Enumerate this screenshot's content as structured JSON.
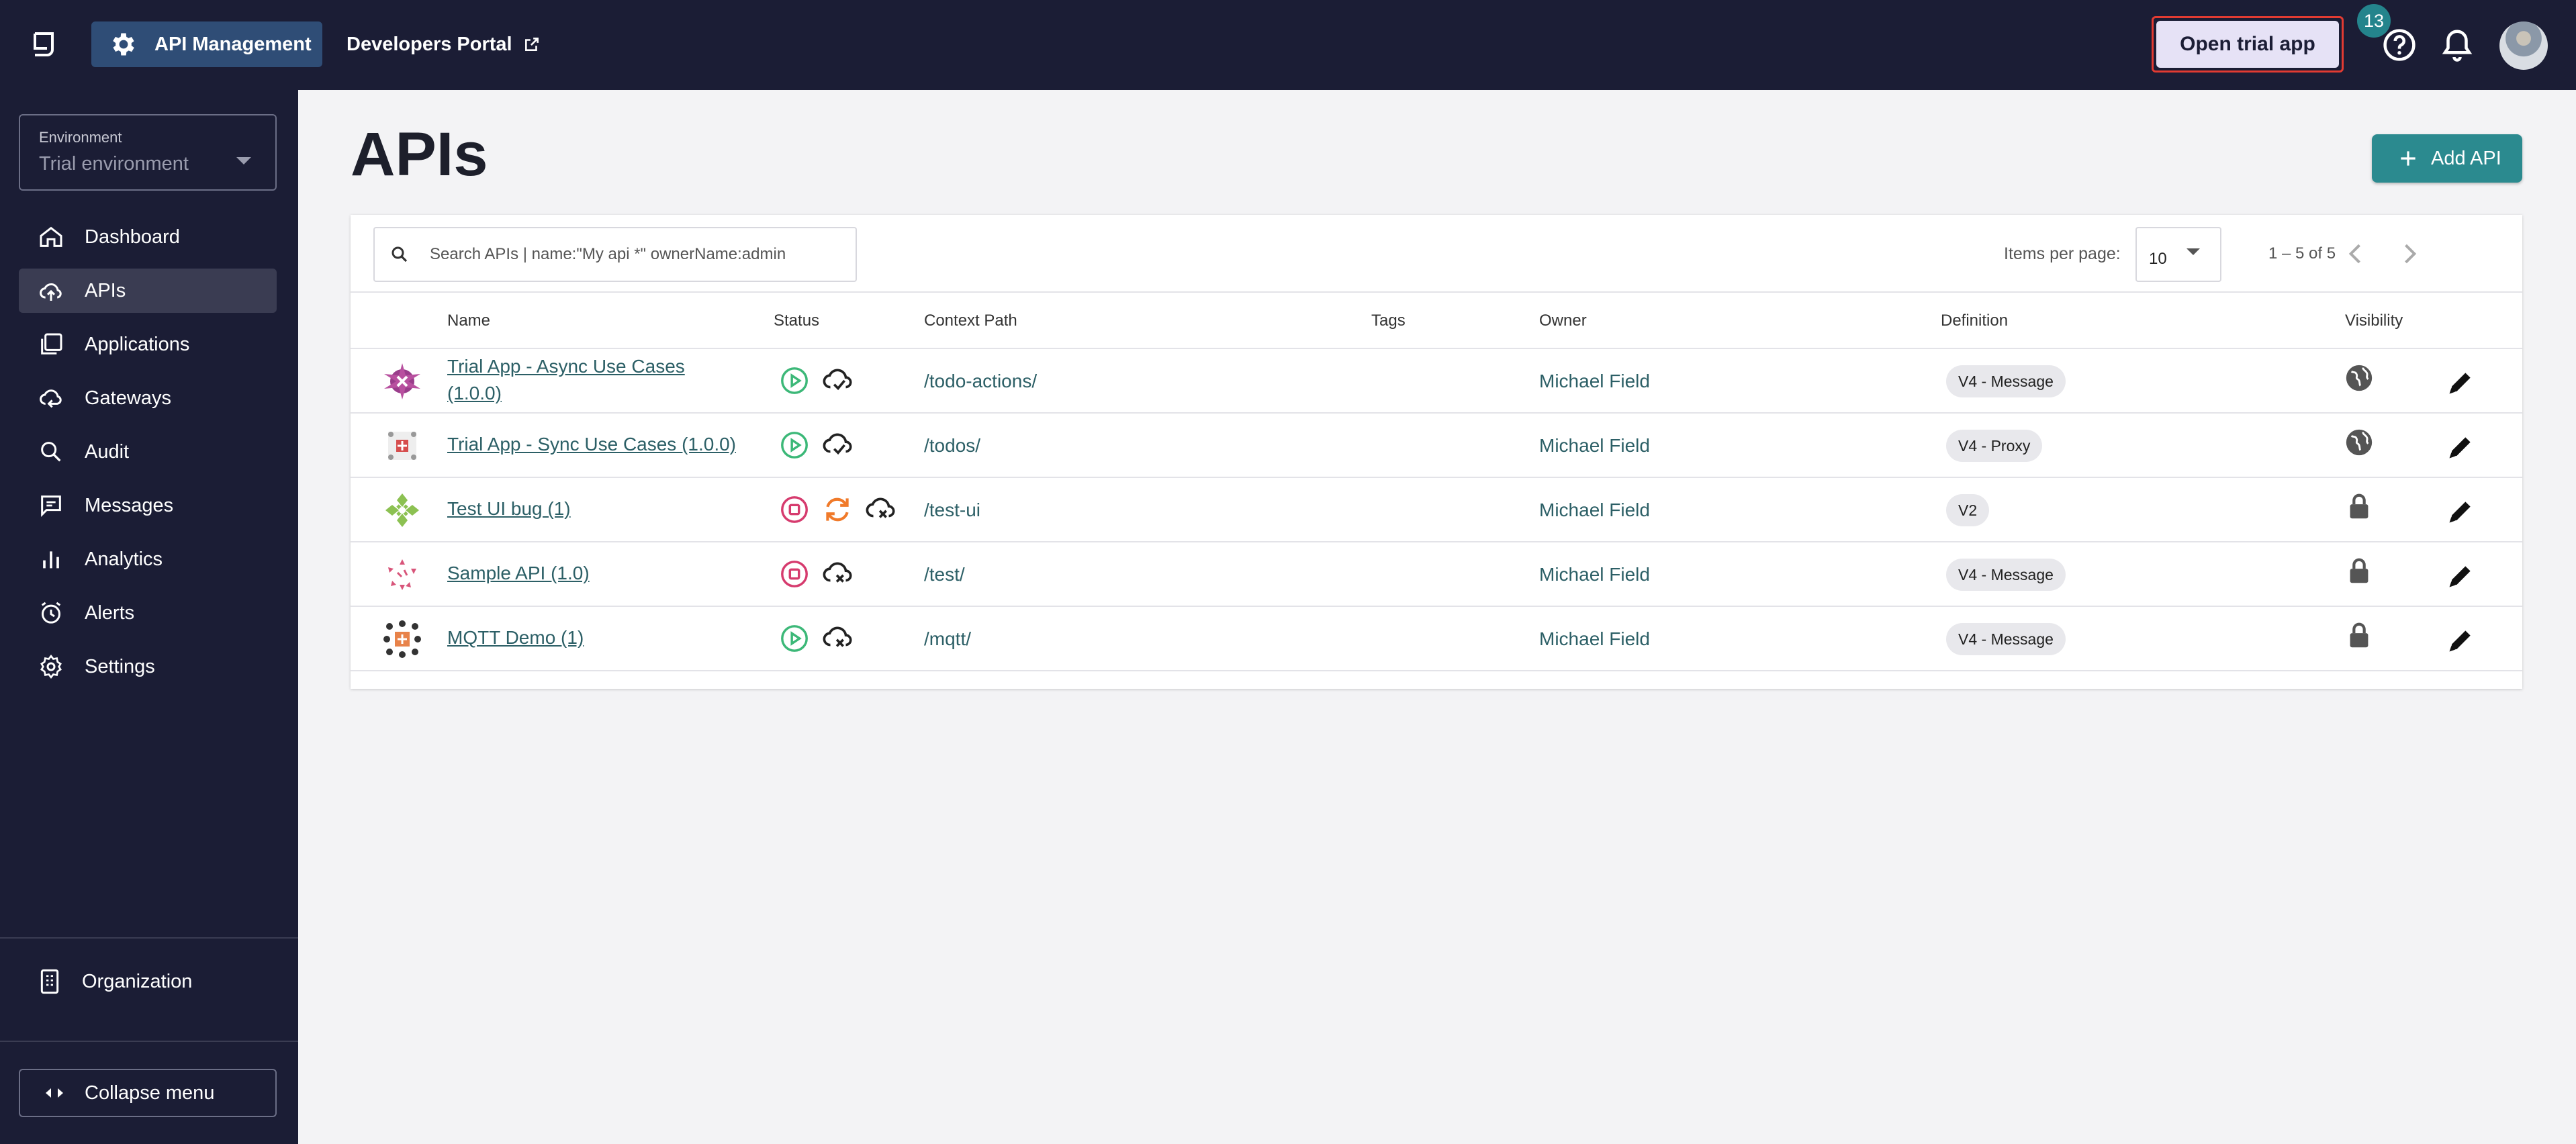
{
  "topbar": {
    "api_management": "API Management",
    "developers_portal": "Developers Portal",
    "open_trial_app": "Open trial app",
    "notification_count": "13"
  },
  "sidebar": {
    "environment_label": "Environment",
    "environment_value": "Trial environment",
    "items": [
      {
        "label": "Dashboard",
        "icon": "home-icon"
      },
      {
        "label": "APIs",
        "icon": "cloud-upload-icon",
        "active": true
      },
      {
        "label": "Applications",
        "icon": "applications-icon"
      },
      {
        "label": "Gateways",
        "icon": "gateway-cloud-icon"
      },
      {
        "label": "Audit",
        "icon": "audit-search-icon"
      },
      {
        "label": "Messages",
        "icon": "message-icon"
      },
      {
        "label": "Analytics",
        "icon": "bar-chart-icon"
      },
      {
        "label": "Alerts",
        "icon": "alarm-clock-icon"
      },
      {
        "label": "Settings",
        "icon": "gear-icon"
      }
    ],
    "organization": "Organization",
    "collapse_menu": "Collapse menu"
  },
  "main": {
    "title": "APIs",
    "add_api": "Add API",
    "search_placeholder": "Search APIs | name:\"My api *\" ownerName:admin",
    "items_per_page_label": "Items per page:",
    "items_per_page": "10",
    "range": "1 – 5 of 5",
    "columns": {
      "name": "Name",
      "status": "Status",
      "context_path": "Context Path",
      "tags": "Tags",
      "owner": "Owner",
      "definition": "Definition",
      "visibility": "Visibility"
    },
    "rows": [
      {
        "name_line1": "Trial App - Async Use Cases",
        "name_line2": "(1.0.0)",
        "status": [
          "started",
          "synced"
        ],
        "context_path": "/todo-actions/",
        "owner": "Michael Field",
        "definition": "V4 - Message",
        "visibility": "public"
      },
      {
        "name_line1": "Trial App - Sync Use Cases (1.0.0)",
        "name_line2": "",
        "status": [
          "started",
          "synced"
        ],
        "context_path": "/todos/",
        "owner": "Michael Field",
        "definition": "V4 - Proxy",
        "visibility": "public"
      },
      {
        "name_line1": "Test UI bug (1)",
        "name_line2": "",
        "status": [
          "stopped",
          "out-of-sync",
          "not-deployed"
        ],
        "context_path": "/test-ui",
        "owner": "Michael Field",
        "definition": "V2",
        "visibility": "private"
      },
      {
        "name_line1": "Sample API (1.0)",
        "name_line2": "",
        "status": [
          "stopped",
          "not-deployed"
        ],
        "context_path": "/test/",
        "owner": "Michael Field",
        "definition": "V4 - Message",
        "visibility": "private"
      },
      {
        "name_line1": "MQTT Demo (1)",
        "name_line2": "",
        "status": [
          "started",
          "not-deployed"
        ],
        "context_path": "/mqtt/",
        "owner": "Michael Field",
        "definition": "V4 - Message",
        "visibility": "private"
      }
    ]
  }
}
